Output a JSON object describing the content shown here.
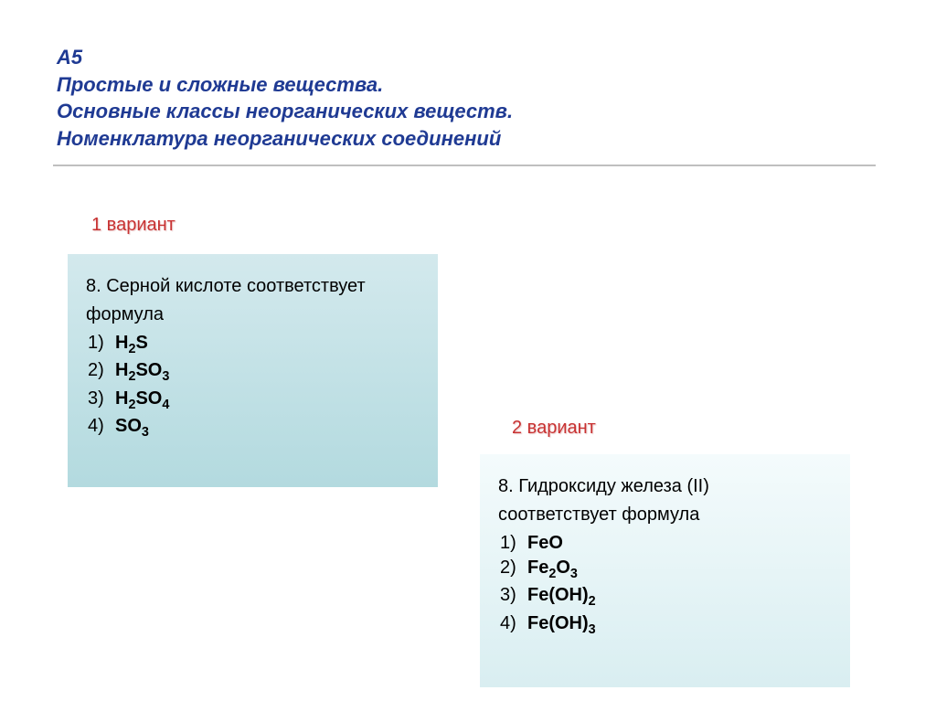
{
  "header": {
    "code": "А5",
    "line1": "Простые и сложные вещества.",
    "line2": "Основные классы неорганических веществ.",
    "line3": "Номенклатура неорганических соединений"
  },
  "variant1": {
    "label": "1 вариант",
    "question_num": "8.",
    "stem1": "8. Серной кислоте соответствует",
    "stem2": "формула",
    "options": [
      {
        "n": "1)",
        "html": "H<sub>2</sub>S"
      },
      {
        "n": "2)",
        "html": "H<sub>2</sub>SO<sub>3</sub>"
      },
      {
        "n": "3)",
        "html": "H<sub>2</sub>SO<sub>4</sub>"
      },
      {
        "n": "4)",
        "html": "SO<sub>3</sub>"
      }
    ]
  },
  "variant2": {
    "label": "2 вариант",
    "question_num": "8.",
    "stem1": "8. Гидроксиду железа (II)",
    "stem2": "соответствует формула",
    "options": [
      {
        "n": "1)",
        "html": "FeO"
      },
      {
        "n": "2)",
        "html": "Fe<sub>2</sub>O<sub>3</sub>"
      },
      {
        "n": "3)",
        "html": "Fe(OH)<sub>2</sub>"
      },
      {
        "n": "4)",
        "html": "Fe(OH)<sub>3</sub>"
      }
    ]
  },
  "style": {
    "header_color": "#1f3a93",
    "header_fontsize": 22,
    "variant_color": "#c83232",
    "variant_fontsize": 20,
    "body_fontsize": 20,
    "card1_bg_top": "#d3e9ed",
    "card1_bg_bottom": "#b3dadf",
    "card2_bg_top": "#f4fbfc",
    "card2_bg_bottom": "#d9eef1",
    "separator_color": "#bfbfbf",
    "background": "#ffffff"
  }
}
